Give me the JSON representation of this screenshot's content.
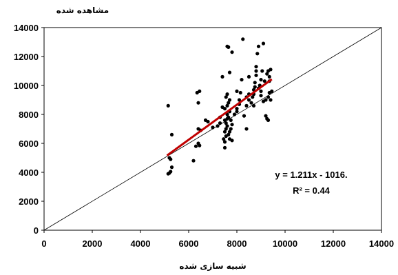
{
  "chart_data": {
    "type": "scatter",
    "title": "",
    "xlabel": "شبیه سازی شده",
    "ylabel": "مشاهده شده",
    "xlim": [
      0,
      14000
    ],
    "ylim": [
      0,
      14000
    ],
    "xticks": [
      "0",
      "2000",
      "4000",
      "6000",
      "8000",
      "10000",
      "12000",
      "14000"
    ],
    "yticks": [
      "0",
      "2000",
      "4000",
      "6000",
      "8000",
      "10000",
      "12000",
      "14000"
    ],
    "grid": false,
    "reference_line": {
      "type": "1:1",
      "color": "#000000"
    },
    "trendline": {
      "slope": 1.211,
      "intercept": -1016,
      "x_range": [
        5100,
        9450
      ],
      "color": "#c00000"
    },
    "annotation": {
      "equation": "y = 1.211x - 1016.",
      "r2": "R² = 0.44"
    },
    "series": [
      {
        "marker_color": "#000000",
        "points": [
          [
            5150,
            3900
          ],
          [
            5200,
            3950
          ],
          [
            5250,
            4050
          ],
          [
            5300,
            4350
          ],
          [
            5200,
            5000
          ],
          [
            5250,
            4900
          ],
          [
            5150,
            8600
          ],
          [
            5300,
            6600
          ],
          [
            6200,
            4800
          ],
          [
            6300,
            5800
          ],
          [
            6400,
            6000
          ],
          [
            6450,
            5850
          ],
          [
            6400,
            7000
          ],
          [
            6500,
            6900
          ],
          [
            6400,
            8800
          ],
          [
            6350,
            9500
          ],
          [
            6450,
            9600
          ],
          [
            6700,
            7600
          ],
          [
            6800,
            7500
          ],
          [
            7000,
            7100
          ],
          [
            7200,
            7200
          ],
          [
            7300,
            7800
          ],
          [
            7300,
            7400
          ],
          [
            7400,
            8500
          ],
          [
            7500,
            5700
          ],
          [
            7500,
            6100
          ],
          [
            7450,
            6300
          ],
          [
            7550,
            6500
          ],
          [
            7500,
            6800
          ],
          [
            7550,
            7000
          ],
          [
            7600,
            7200
          ],
          [
            7550,
            7400
          ],
          [
            7500,
            7600
          ],
          [
            7600,
            7700
          ],
          [
            7650,
            7800
          ],
          [
            7600,
            8000
          ],
          [
            7700,
            8200
          ],
          [
            7500,
            8400
          ],
          [
            7600,
            8600
          ],
          [
            7650,
            8800
          ],
          [
            7700,
            9000
          ],
          [
            7550,
            9200
          ],
          [
            7600,
            9400
          ],
          [
            7650,
            6600
          ],
          [
            7700,
            6800
          ],
          [
            7750,
            7000
          ],
          [
            7800,
            7300
          ],
          [
            7750,
            7600
          ],
          [
            7700,
            6300
          ],
          [
            7800,
            6200
          ],
          [
            7600,
            12700
          ],
          [
            7650,
            12650
          ],
          [
            7700,
            10900
          ],
          [
            7800,
            12300
          ],
          [
            7400,
            10600
          ],
          [
            7900,
            8000
          ],
          [
            8000,
            8200
          ],
          [
            8000,
            8400
          ],
          [
            8100,
            8700
          ],
          [
            8100,
            9000
          ],
          [
            8000,
            9600
          ],
          [
            8150,
            9500
          ],
          [
            8200,
            10400
          ],
          [
            8250,
            13200
          ],
          [
            8300,
            7900
          ],
          [
            8400,
            8600
          ],
          [
            8400,
            9200
          ],
          [
            8400,
            7000
          ],
          [
            8500,
            9000
          ],
          [
            8500,
            9400
          ],
          [
            8500,
            10600
          ],
          [
            8600,
            8800
          ],
          [
            8650,
            9200
          ],
          [
            8700,
            8600
          ],
          [
            8700,
            9400
          ],
          [
            8700,
            9700
          ],
          [
            8750,
            9900
          ],
          [
            8750,
            10200
          ],
          [
            8800,
            10700
          ],
          [
            8800,
            11000
          ],
          [
            8800,
            11300
          ],
          [
            8850,
            12200
          ],
          [
            8900,
            12700
          ],
          [
            8900,
            9800
          ],
          [
            8950,
            10000
          ],
          [
            9000,
            9300
          ],
          [
            9000,
            9600
          ],
          [
            9000,
            10400
          ],
          [
            9050,
            11000
          ],
          [
            9100,
            12900
          ],
          [
            9100,
            8900
          ],
          [
            9150,
            10300
          ],
          [
            9200,
            7900
          ],
          [
            9200,
            9000
          ],
          [
            9250,
            7700
          ],
          [
            9300,
            7600
          ],
          [
            9250,
            10800
          ],
          [
            9300,
            11000
          ],
          [
            9350,
            10300
          ],
          [
            9350,
            10600
          ],
          [
            9400,
            11100
          ],
          [
            9350,
            9500
          ],
          [
            9300,
            9200
          ],
          [
            9400,
            9000
          ],
          [
            9450,
            9600
          ]
        ]
      }
    ]
  }
}
